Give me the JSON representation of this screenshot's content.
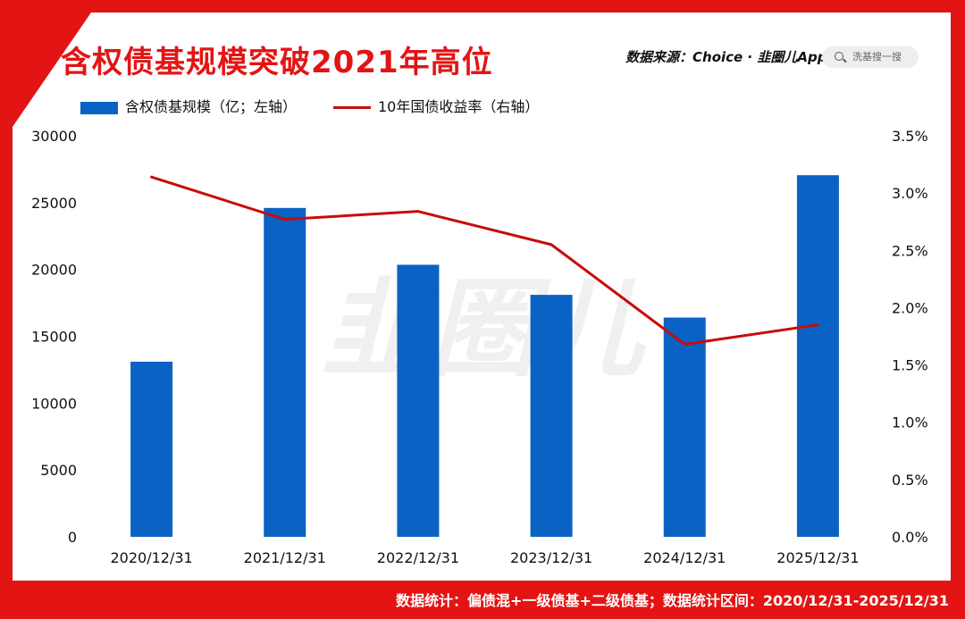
{
  "header": {
    "title": "含权债基规模突破2021年高位",
    "source": "数据来源：Choice · 韭圈儿App",
    "search_placeholder": "洗基搜一搜"
  },
  "watermark": "韭圈儿",
  "footer": {
    "note": "数据统计：偏债混+一级债基+二级债基；数据统计区间：2020/12/31-2025/12/31"
  },
  "colors": {
    "frame": "#e31414",
    "bar": "#0a62c4",
    "line": "#c80c0c"
  },
  "chart_data": {
    "type": "bar",
    "categories": [
      "2020/12/31",
      "2021/12/31",
      "2022/12/31",
      "2023/12/31",
      "2024/12/31",
      "2025/12/31"
    ],
    "series": [
      {
        "name": "含权债基规模（亿；左轴）",
        "type": "bar",
        "axis": "left",
        "values": [
          13100,
          24600,
          20350,
          18100,
          16400,
          27050
        ]
      },
      {
        "name": "10年国债收益率（右轴）",
        "type": "line",
        "axis": "right",
        "values": [
          3.14,
          2.77,
          2.84,
          2.55,
          1.68,
          1.85
        ]
      }
    ],
    "y_left": {
      "range": [
        0,
        30000
      ],
      "ticks": [
        "0",
        "5000",
        "10000",
        "15000",
        "20000",
        "25000",
        "30000"
      ]
    },
    "y_right": {
      "range": [
        0,
        3.5
      ],
      "ticks": [
        "0.0%",
        "0.5%",
        "1.0%",
        "1.5%",
        "2.0%",
        "2.5%",
        "3.0%",
        "3.5%"
      ]
    },
    "grid": false,
    "legend_position": "top-left"
  }
}
